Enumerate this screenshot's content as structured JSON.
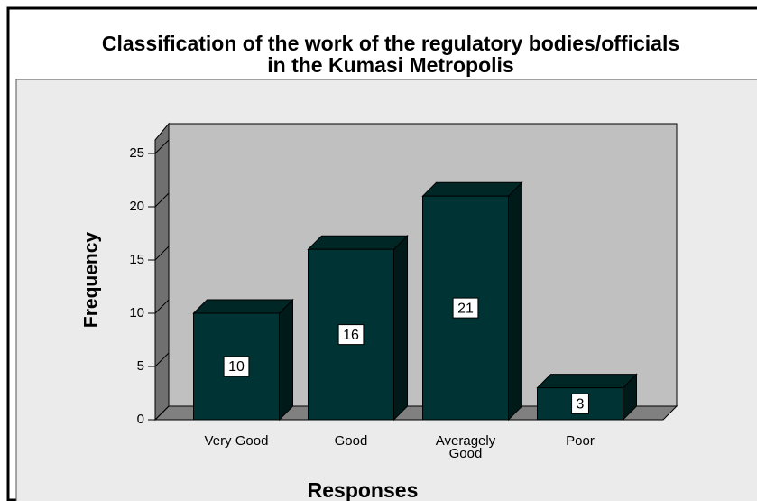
{
  "chart_data": {
    "type": "bar",
    "title": "Classification of the work of the regulatory bodies/officials in the Kumasi Metropolis",
    "x_label": "Responses",
    "y_label": "Frequency",
    "categories": [
      "Very Good",
      "Good",
      "Averagely Good",
      "Poor"
    ],
    "values": [
      10,
      16,
      21,
      3
    ],
    "color": "#003333",
    "ylim": [
      0,
      25
    ],
    "yticks": [
      0,
      5,
      10,
      15,
      20,
      25
    ],
    "grid": false
  }
}
